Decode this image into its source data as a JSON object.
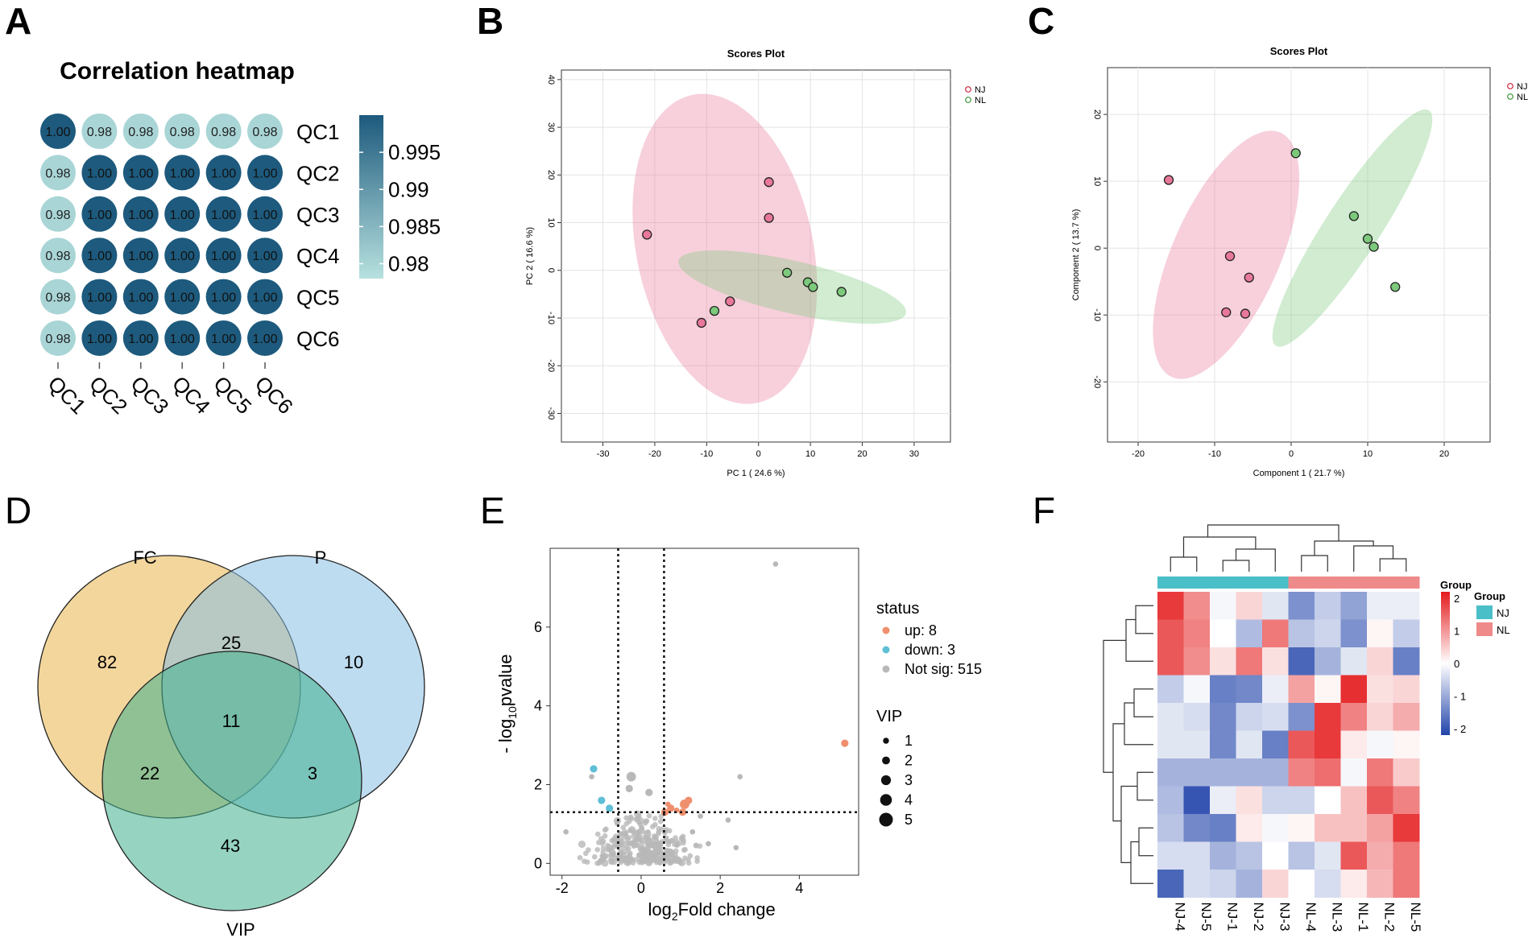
{
  "panels": {
    "A": "A",
    "B": "B",
    "C": "C",
    "D": "D",
    "E": "E",
    "F": "F"
  },
  "chart_data": [
    {
      "panel": "A",
      "type": "heatmap",
      "title": "Correlation heatmap",
      "labels": [
        "QC1",
        "QC2",
        "QC3",
        "QC4",
        "QC5",
        "QC6"
      ],
      "values": [
        [
          1.0,
          0.98,
          0.98,
          0.98,
          0.98,
          0.98
        ],
        [
          0.98,
          1.0,
          1.0,
          1.0,
          1.0,
          1.0
        ],
        [
          0.98,
          1.0,
          1.0,
          1.0,
          1.0,
          1.0
        ],
        [
          0.98,
          1.0,
          1.0,
          1.0,
          1.0,
          1.0
        ],
        [
          0.98,
          1.0,
          1.0,
          1.0,
          1.0,
          1.0
        ],
        [
          0.98,
          1.0,
          1.0,
          1.0,
          1.0,
          1.0
        ]
      ],
      "cell_text": [
        [
          "1.00",
          "0.98",
          "0.98",
          "0.98",
          "0.98",
          "0.98"
        ],
        [
          "0.98",
          "1.00",
          "1.00",
          "1.00",
          "1.00",
          "1.00"
        ],
        [
          "0.98",
          "1.00",
          "1.00",
          "1.00",
          "1.00",
          "1.00"
        ],
        [
          "0.98",
          "1.00",
          "1.00",
          "1.00",
          "1.00",
          "1.00"
        ],
        [
          "0.98",
          "1.00",
          "1.00",
          "1.00",
          "1.00",
          "1.00"
        ],
        [
          "0.98",
          "1.00",
          "1.00",
          "1.00",
          "1.00",
          "1.00"
        ]
      ],
      "color_range": [
        0.978,
        1.0
      ],
      "colorbar_ticks": [
        0.995,
        0.99,
        0.985,
        0.98
      ],
      "colorbar_tick_labels": [
        "0.995",
        "0.99",
        "0.985",
        "0.98"
      ],
      "colors": {
        "low": "#b7e1df",
        "high": "#1d5a7d"
      }
    },
    {
      "panel": "B",
      "type": "scatter",
      "title": "Scores Plot",
      "xlabel": "PC 1 ( 24.6 %)",
      "ylabel": "PC 2 ( 16.6 %)",
      "xlim": [
        -38,
        37
      ],
      "ylim": [
        -36,
        42
      ],
      "xticks": [
        -30,
        -20,
        -10,
        0,
        10,
        20,
        30
      ],
      "yticks": [
        -30,
        -20,
        -10,
        0,
        10,
        20,
        30,
        40
      ],
      "series": [
        {
          "name": "NJ",
          "color": "#e8789a",
          "points": [
            [
              -21.5,
              7.5
            ],
            [
              2,
              18.5
            ],
            [
              2,
              11
            ],
            [
              -5.5,
              -6.5
            ],
            [
              -11,
              -11
            ]
          ],
          "ellipse": {
            "cx": -6.5,
            "cy": 4.5,
            "rx": 17,
            "ry": 33,
            "angle_deg": -12
          }
        },
        {
          "name": "NL",
          "color": "#7cc97c",
          "points": [
            [
              5.5,
              -0.5
            ],
            [
              9.5,
              -2.5
            ],
            [
              10.5,
              -3.5
            ],
            [
              16,
              -4.5
            ],
            [
              -8.5,
              -8.5
            ]
          ],
          "ellipse": {
            "cx": 6.5,
            "cy": -3.5,
            "rx": 22.5,
            "ry": 5.5,
            "angle_deg": 13
          }
        }
      ]
    },
    {
      "panel": "C",
      "type": "scatter",
      "title": "Scores Plot",
      "xlabel": "Component 1 ( 21.7 %)",
      "ylabel": "Component 2 ( 13.7 %)",
      "xlim": [
        -24,
        26
      ],
      "ylim": [
        -29,
        27
      ],
      "xticks": [
        -20,
        -10,
        0,
        10,
        20
      ],
      "yticks": [
        -20,
        -10,
        0,
        10,
        20
      ],
      "series": [
        {
          "name": "NJ",
          "color": "#e8789a",
          "points": [
            [
              -16,
              10.2
            ],
            [
              -8,
              -1.2
            ],
            [
              -5.5,
              -4.4
            ],
            [
              -8.5,
              -9.6
            ],
            [
              -6,
              -9.8
            ]
          ],
          "ellipse": {
            "cx": -8.5,
            "cy": -1,
            "rx": 7,
            "ry": 20,
            "angle_deg": 24
          }
        },
        {
          "name": "NL",
          "color": "#7cc97c",
          "points": [
            [
              0.6,
              14.2
            ],
            [
              8.2,
              4.8
            ],
            [
              10,
              1.4
            ],
            [
              10.8,
              0.2
            ],
            [
              13.6,
              -5.8
            ]
          ],
          "ellipse": {
            "cx": 8,
            "cy": 3,
            "rx": 3.6,
            "ry": 21,
            "angle_deg": 33
          }
        }
      ]
    },
    {
      "panel": "D",
      "type": "venn",
      "sets": [
        "FC",
        "P",
        "VIP"
      ],
      "regions": [
        {
          "sets": [
            "FC"
          ],
          "value": 82
        },
        {
          "sets": [
            "P"
          ],
          "value": 10
        },
        {
          "sets": [
            "FC",
            "P"
          ],
          "value": 25
        },
        {
          "sets": [
            "FC",
            "P",
            "VIP"
          ],
          "value": 11
        },
        {
          "sets": [
            "FC",
            "VIP"
          ],
          "value": 22
        },
        {
          "sets": [
            "P",
            "VIP"
          ],
          "value": 3
        },
        {
          "sets": [
            "VIP"
          ],
          "value": 43
        }
      ],
      "colors": {
        "FC": "#e8b44a",
        "P": "#89c0e3",
        "VIP": "#3fb08e"
      }
    },
    {
      "panel": "E",
      "type": "scatter",
      "subtype": "volcano",
      "xlabel_main": "log",
      "xlabel_sub": "2",
      "xlabel_rest": "Fold change",
      "ylabel_main": "- log",
      "ylabel_sub": "10",
      "ylabel_rest": "pvalue",
      "xlim": [
        -2.3,
        5.5
      ],
      "ylim": [
        -0.3,
        8.0
      ],
      "xticks": [
        -2,
        0,
        2,
        4
      ],
      "yticks": [
        0,
        2,
        4,
        6
      ],
      "thresholds": {
        "x": [
          -0.58,
          0.58
        ],
        "y": 1.3
      },
      "legend_status_title": "status",
      "legend_status": [
        {
          "label": "up:  8",
          "color": "#ef8f6e"
        },
        {
          "label": "down:  3",
          "color": "#5fbfd6"
        },
        {
          "label": "Not sig:  515",
          "color": "#b8b8b8"
        }
      ],
      "legend_vip_title": "VIP",
      "legend_vip": [
        {
          "label": "1",
          "size": 1
        },
        {
          "label": "2",
          "size": 2
        },
        {
          "label": "3",
          "size": 3
        },
        {
          "label": "4",
          "size": 4
        },
        {
          "label": "5",
          "size": 5
        }
      ],
      "points_up": [
        [
          5.15,
          3.05,
          2
        ],
        [
          1.2,
          1.6,
          2
        ],
        [
          1.1,
          1.5,
          3
        ],
        [
          0.75,
          1.4,
          2
        ],
        [
          0.6,
          1.3,
          2
        ],
        [
          0.9,
          1.35,
          1
        ],
        [
          0.68,
          1.5,
          1
        ],
        [
          1.05,
          1.3,
          2
        ]
      ],
      "points_down": [
        [
          -1.2,
          2.4,
          2
        ],
        [
          -1.0,
          1.6,
          2
        ],
        [
          -0.8,
          1.4,
          2
        ]
      ],
      "points_notsig": [
        [
          3.4,
          7.6,
          1
        ],
        [
          2.5,
          2.2,
          1
        ],
        [
          2.2,
          1.1,
          1
        ],
        [
          2.4,
          0.4,
          1
        ],
        [
          -1.25,
          2.2,
          1
        ],
        [
          -1.9,
          0.8,
          1
        ],
        [
          -0.25,
          2.2,
          3
        ],
        [
          -0.3,
          1.9,
          2
        ],
        [
          0.2,
          1.8,
          2
        ],
        [
          1.3,
          0.8,
          1
        ],
        [
          1.7,
          0.5,
          1
        ],
        [
          1.5,
          1.2,
          1
        ]
      ]
    },
    {
      "panel": "F",
      "type": "heatmap",
      "columns": [
        "NJ-4",
        "NJ-5",
        "NJ-1",
        "NJ-2",
        "NJ-3",
        "NL-4",
        "NL-3",
        "NL-1",
        "NL-2",
        "NL-5"
      ],
      "column_groups": [
        "NJ",
        "NJ",
        "NJ",
        "NJ",
        "NJ",
        "NL",
        "NL",
        "NL",
        "NL",
        "NL"
      ],
      "values": [
        [
          1.9,
          1.1,
          -0.1,
          0.4,
          -0.3,
          -1.3,
          -0.6,
          -1.1,
          -0.2,
          -0.2
        ],
        [
          1.6,
          1.2,
          0.0,
          -0.8,
          1.3,
          -0.7,
          -0.5,
          -1.3,
          0.1,
          -0.6
        ],
        [
          1.6,
          1.1,
          0.3,
          1.3,
          0.3,
          -1.8,
          -0.9,
          -0.3,
          0.4,
          -1.5
        ],
        [
          -0.6,
          -0.1,
          -1.5,
          -1.4,
          -0.2,
          0.9,
          0.1,
          2.0,
          0.3,
          0.4
        ],
        [
          -0.3,
          -0.4,
          -1.4,
          -0.5,
          -0.4,
          -1.3,
          1.9,
          1.2,
          0.4,
          0.8
        ],
        [
          -0.3,
          -0.3,
          -1.4,
          -0.3,
          -1.5,
          1.6,
          1.9,
          0.2,
          -0.1,
          0.1
        ],
        [
          -0.9,
          -0.9,
          -0.9,
          -0.9,
          -0.9,
          1.2,
          1.4,
          -0.1,
          1.3,
          0.5
        ],
        [
          -0.8,
          -2.0,
          -0.2,
          0.3,
          -0.5,
          -0.5,
          0.0,
          0.6,
          1.6,
          1.2
        ],
        [
          -0.7,
          -1.4,
          -1.5,
          0.2,
          -0.1,
          0.1,
          0.6,
          0.6,
          0.9,
          1.9
        ],
        [
          -0.4,
          -0.4,
          -0.9,
          -0.7,
          0.0,
          -0.7,
          -0.3,
          1.6,
          0.8,
          1.3
        ],
        [
          -1.8,
          -0.4,
          -0.5,
          -0.9,
          0.4,
          0.0,
          -0.4,
          0.2,
          0.7,
          1.3
        ]
      ],
      "color_range": [
        -2.2,
        2.2
      ],
      "colorbar_ticks": [
        2,
        1,
        0,
        -1,
        -2
      ],
      "colorbar_tick_labels": [
        "2",
        "1",
        "0",
        "- 1",
        "- 2"
      ],
      "colorbar_title": "Group",
      "group_legend_title": "Group",
      "group_legend": [
        {
          "name": "NJ",
          "color": "#4bbfc8"
        },
        {
          "name": "NL",
          "color": "#ef8a8a"
        }
      ]
    }
  ]
}
